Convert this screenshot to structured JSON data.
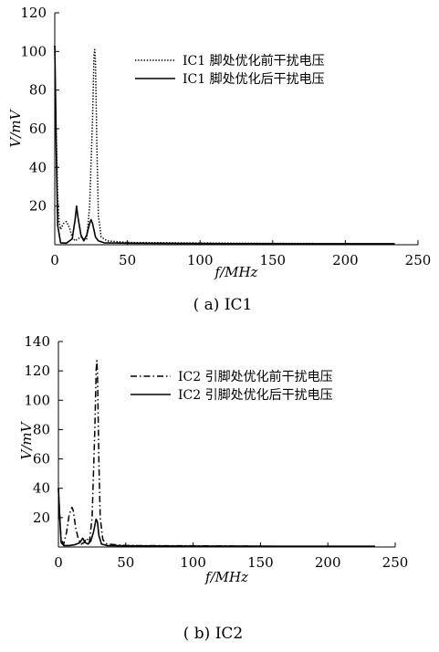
{
  "chart_data": [
    {
      "type": "line",
      "caption": "( a) IC1",
      "xlabel": "f/MHz",
      "ylabel": "V/mV",
      "xlim": [
        0,
        250
      ],
      "ylim": [
        0,
        120
      ],
      "x_ticks": [
        "0",
        "50",
        "100",
        "150",
        "200",
        "250"
      ],
      "y_ticks": [
        "20",
        "40",
        "60",
        "80",
        "100",
        "120"
      ],
      "grid": false,
      "legend_position": "top-right",
      "series": [
        {
          "name": "IC1 脚处优化前干扰电压",
          "style": "dotted",
          "points": [
            [
              0,
              103
            ],
            [
              1,
              60
            ],
            [
              2,
              25
            ],
            [
              3,
              12
            ],
            [
              4,
              8
            ],
            [
              6,
              11
            ],
            [
              8,
              12
            ],
            [
              10,
              9
            ],
            [
              12,
              4
            ],
            [
              14,
              2
            ],
            [
              16,
              3
            ],
            [
              18,
              4
            ],
            [
              20,
              3
            ],
            [
              22,
              3
            ],
            [
              24,
              20
            ],
            [
              26,
              65
            ],
            [
              27,
              98
            ],
            [
              27.5,
              101
            ],
            [
              28,
              95
            ],
            [
              29,
              50
            ],
            [
              30,
              15
            ],
            [
              32,
              4
            ],
            [
              36,
              2
            ],
            [
              50,
              1.2
            ],
            [
              80,
              1
            ],
            [
              120,
              0.8
            ],
            [
              180,
              0.6
            ],
            [
              234,
              0.5
            ]
          ]
        },
        {
          "name": "IC1 脚处优化后干扰电压",
          "style": "solid",
          "points": [
            [
              0,
              103
            ],
            [
              1,
              50
            ],
            [
              2,
              10
            ],
            [
              4,
              1
            ],
            [
              8,
              0.8
            ],
            [
              12,
              3
            ],
            [
              14,
              13
            ],
            [
              15,
              20
            ],
            [
              16,
              14
            ],
            [
              18,
              5
            ],
            [
              20,
              2
            ],
            [
              22,
              5
            ],
            [
              24,
              11
            ],
            [
              25,
              13
            ],
            [
              26,
              11
            ],
            [
              28,
              4
            ],
            [
              30,
              2
            ],
            [
              34,
              1
            ],
            [
              50,
              0.8
            ],
            [
              100,
              0.6
            ],
            [
              160,
              0.5
            ],
            [
              234,
              0.5
            ]
          ]
        }
      ]
    },
    {
      "type": "line",
      "caption": "( b) IC2",
      "xlabel": "f/MHz",
      "ylabel": "V/mV",
      "xlim": [
        0,
        250
      ],
      "ylim": [
        0,
        140
      ],
      "x_ticks": [
        "0",
        "50",
        "100",
        "150",
        "200",
        "250"
      ],
      "y_ticks": [
        "20",
        "40",
        "60",
        "80",
        "100",
        "120",
        "140"
      ],
      "grid": false,
      "legend_position": "top-right",
      "series": [
        {
          "name": "IC2 引脚处优化前干扰电压",
          "style": "dashdot",
          "points": [
            [
              0,
              40
            ],
            [
              1,
              20
            ],
            [
              2,
              5
            ],
            [
              4,
              2
            ],
            [
              6,
              10
            ],
            [
              8,
              22
            ],
            [
              10,
              27
            ],
            [
              11,
              25
            ],
            [
              13,
              12
            ],
            [
              15,
              5
            ],
            [
              17,
              2
            ],
            [
              19,
              3
            ],
            [
              21,
              6
            ],
            [
              23,
              3
            ],
            [
              25,
              20
            ],
            [
              27,
              80
            ],
            [
              28,
              120
            ],
            [
              28.5,
              127
            ],
            [
              29,
              118
            ],
            [
              30,
              60
            ],
            [
              31,
              20
            ],
            [
              33,
              5
            ],
            [
              36,
              2
            ],
            [
              50,
              1
            ],
            [
              100,
              0.8
            ],
            [
              160,
              0.5
            ],
            [
              235,
              0.5
            ]
          ]
        },
        {
          "name": "IC2 引脚处优化后干扰电压",
          "style": "solid",
          "points": [
            [
              0,
              40
            ],
            [
              1,
              20
            ],
            [
              2,
              3
            ],
            [
              4,
              1
            ],
            [
              8,
              1
            ],
            [
              12,
              1.5
            ],
            [
              16,
              3
            ],
            [
              18,
              6
            ],
            [
              20,
              3
            ],
            [
              22,
              2
            ],
            [
              24,
              4
            ],
            [
              26,
              10
            ],
            [
              28,
              19
            ],
            [
              29,
              17
            ],
            [
              30,
              8
            ],
            [
              32,
              2
            ],
            [
              36,
              1
            ],
            [
              50,
              0.8
            ],
            [
              100,
              0.6
            ],
            [
              160,
              0.5
            ],
            [
              235,
              0.5
            ]
          ]
        }
      ]
    }
  ]
}
